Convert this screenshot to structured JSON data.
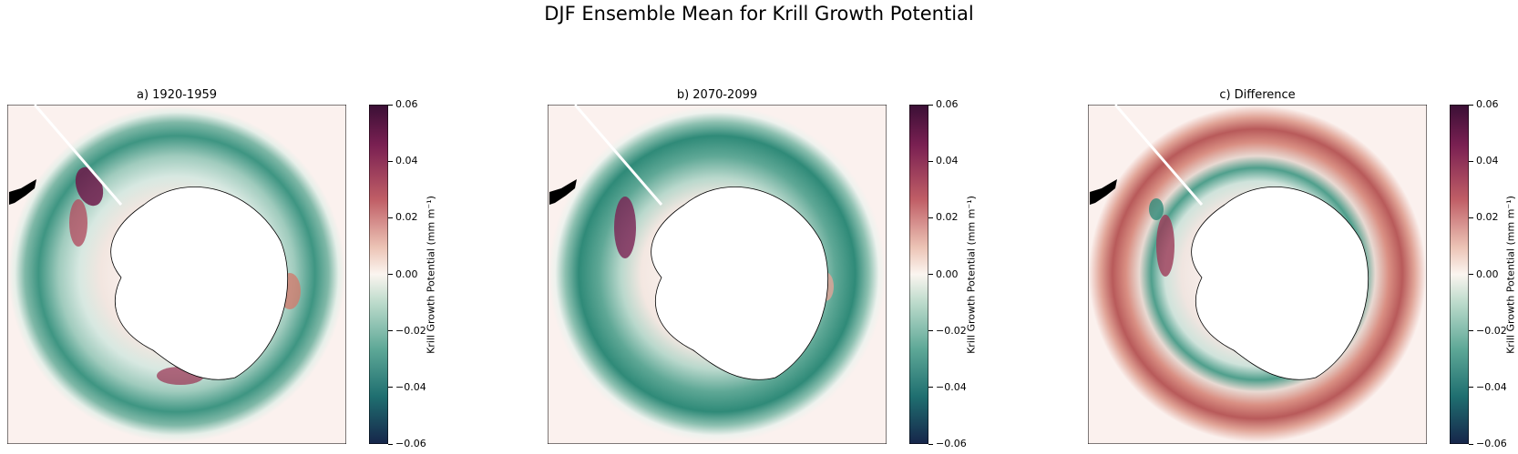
{
  "title": "DJF Ensemble Mean for Krill Growth Potential",
  "colorbar": {
    "label": "Krill Growth Potential (mm m⁻¹)",
    "ticks": [
      "0.06",
      "0.04",
      "0.02",
      "0.00",
      "−0.02",
      "−0.04",
      "−0.06"
    ],
    "min": -0.06,
    "max": 0.06
  },
  "panels": [
    {
      "title": "a) 1920-1959"
    },
    {
      "title": "b) 2070-2099"
    },
    {
      "title": "c) Difference"
    }
  ],
  "colors": {
    "positive_dark": "#4a1036",
    "positive_mid": "#c8665e",
    "neutral": "#fbf1ee",
    "negative_mid": "#3a917f",
    "negative_dark": "#16304a"
  }
}
